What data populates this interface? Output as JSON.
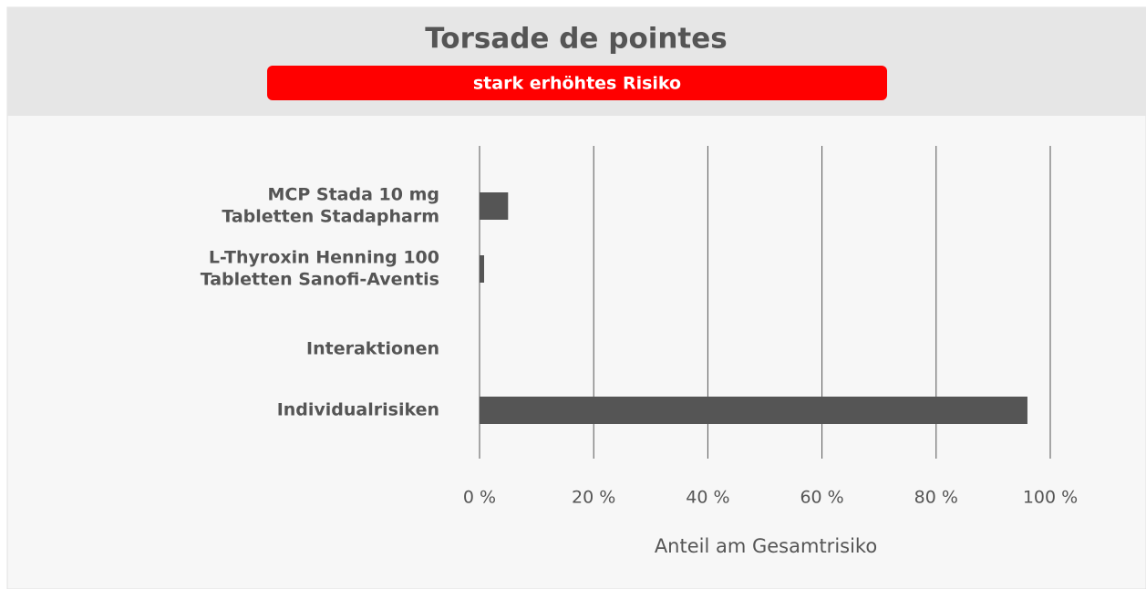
{
  "chart_data": {
    "type": "hbar",
    "title": "Torsade de pointes",
    "subtitle": "stark erhöhtes Risiko",
    "categories": [
      [
        "MCP Stada 10 mg",
        "Tabletten Stadapharm"
      ],
      [
        "L-Thyroxin Henning 100",
        "Tabletten Sanofi-Aventis"
      ],
      [
        "Interaktionen"
      ],
      [
        "Individualrisiken"
      ]
    ],
    "values": [
      5,
      0.8,
      0,
      96
    ],
    "color": "#555555",
    "xlim": [
      0,
      100
    ],
    "xticks": [
      {
        "value": 0,
        "label": "0 %"
      },
      {
        "value": 20,
        "label": "20 %"
      },
      {
        "value": 40,
        "label": "40 %"
      },
      {
        "value": 60,
        "label": "60 %"
      },
      {
        "value": 80,
        "label": "80 %"
      },
      {
        "value": 100,
        "label": "100 %"
      }
    ],
    "xlabel": "Anteil am Gesamtrisiko",
    "grid": true
  }
}
